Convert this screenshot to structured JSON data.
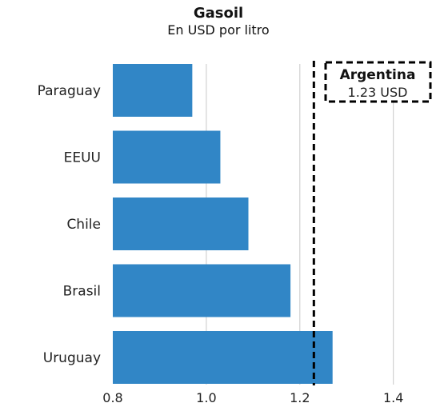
{
  "chart_data": {
    "type": "bar",
    "orientation": "horizontal",
    "title": "Gasoil",
    "subtitle": "En USD por litro",
    "categories": [
      "Paraguay",
      "EEUU",
      "Chile",
      "Brasil",
      "Uruguay"
    ],
    "values": [
      0.97,
      1.03,
      1.09,
      1.18,
      1.27
    ],
    "xlim": [
      0.8,
      1.5
    ],
    "xticks": [
      0.8,
      1.0,
      1.2,
      1.4
    ],
    "xtick_labels": [
      "0.8",
      "1.0",
      "1.2",
      "1.4"
    ],
    "grid": true,
    "bar_color": "#3186c6",
    "reference": {
      "name": "Argentina",
      "value": 1.23,
      "value_label": "1.23 USD"
    }
  }
}
